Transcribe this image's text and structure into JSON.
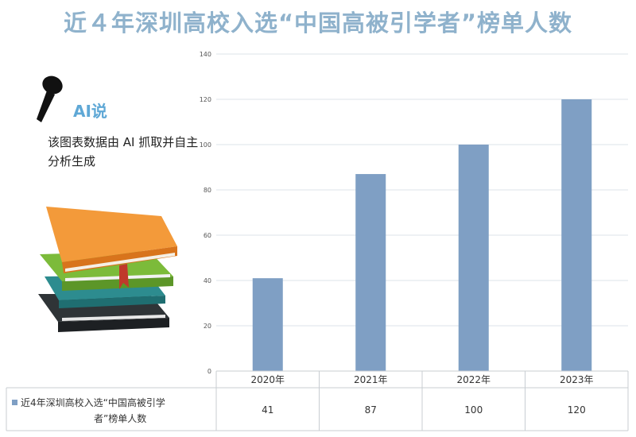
{
  "title": "近４年深圳高校入选“中国高被引学者”榜单人数",
  "badge": {
    "label": "AI说",
    "note": "该图表数据由 AI 抓取并自主分析生成"
  },
  "colors": {
    "bar": "#7f9fc4",
    "title": "#8fb2cc"
  },
  "chart_data": {
    "type": "bar",
    "title": "近４年深圳高校入选“中国高被引学者”榜单人数",
    "categories": [
      "2020年",
      "2021年",
      "2022年",
      "2023年"
    ],
    "series": [
      {
        "name": "近4年深圳高校入选“中国高被引学者”榜单人数",
        "values": [
          41,
          87,
          100,
          120
        ]
      }
    ],
    "ylim": [
      0,
      140
    ],
    "yticks": [
      0,
      20,
      40,
      60,
      80,
      100,
      120,
      140
    ],
    "grid": true,
    "legend": "data-table-below",
    "table_rows": [
      {
        "label_line1": "近4年深圳高校入选“中国高被引学",
        "label_line2": "者”榜单人数",
        "values": [
          "41",
          "87",
          "100",
          "120"
        ]
      }
    ]
  }
}
